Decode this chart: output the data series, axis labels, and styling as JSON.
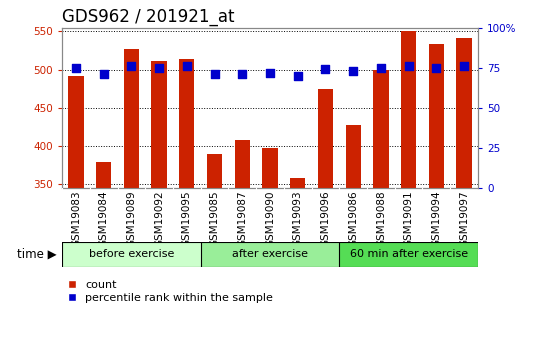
{
  "title": "GDS962 / 201921_at",
  "categories": [
    "GSM19083",
    "GSM19084",
    "GSM19089",
    "GSM19092",
    "GSM19095",
    "GSM19085",
    "GSM19087",
    "GSM19090",
    "GSM19093",
    "GSM19096",
    "GSM19086",
    "GSM19088",
    "GSM19091",
    "GSM19094",
    "GSM19097"
  ],
  "counts": [
    492,
    379,
    527,
    511,
    514,
    390,
    408,
    398,
    358,
    475,
    428,
    500,
    550,
    534,
    541
  ],
  "percentiles": [
    75,
    71,
    76,
    75,
    76,
    71,
    71,
    72,
    70,
    74,
    73,
    75,
    76,
    75,
    76
  ],
  "groups": [
    {
      "label": "before exercise",
      "start": 0,
      "end": 5,
      "color": "#ccffcc"
    },
    {
      "label": "after exercise",
      "start": 5,
      "end": 10,
      "color": "#99ee99"
    },
    {
      "label": "60 min after exercise",
      "start": 10,
      "end": 15,
      "color": "#55dd55"
    }
  ],
  "bar_color": "#cc2200",
  "dot_color": "#0000cc",
  "ylim_left": [
    345,
    555
  ],
  "ylim_right": [
    0,
    100
  ],
  "yticks_left": [
    350,
    400,
    450,
    500,
    550
  ],
  "yticks_right": [
    0,
    25,
    50,
    75,
    100
  ],
  "grid_color": "#000000",
  "bg_color": "#ffffff",
  "tick_label_color_left": "#cc2200",
  "tick_label_color_right": "#0000cc",
  "bar_width": 0.55,
  "dot_size": 30,
  "title_fontsize": 12,
  "tick_fontsize": 7.5,
  "group_label_fontsize": 8,
  "legend_fontsize": 8
}
